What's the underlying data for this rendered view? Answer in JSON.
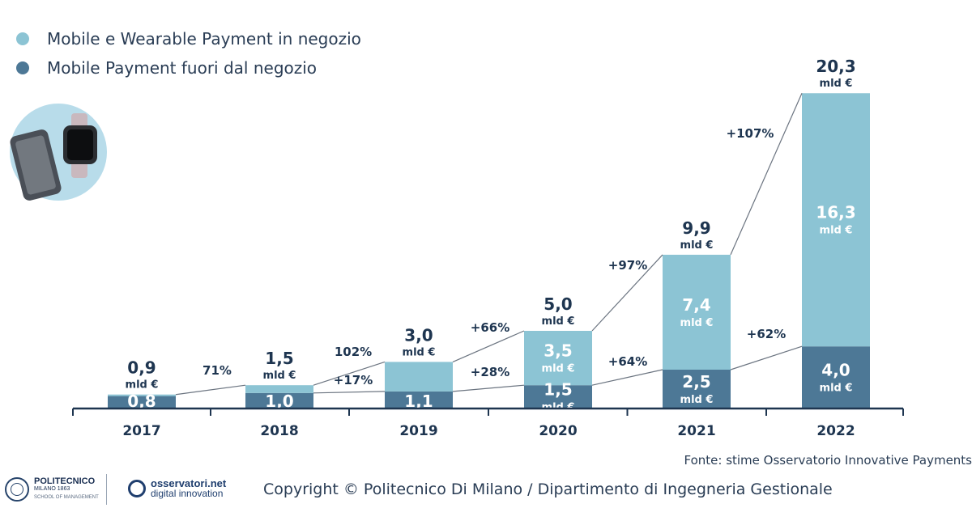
{
  "legend": [
    {
      "label": "Mobile e Wearable Payment in negozio",
      "color": "#8cc4d4"
    },
    {
      "label": "Mobile Payment fuori dal negozio",
      "color": "#4d7896"
    }
  ],
  "icon": "phone-and-smartwatch-icon",
  "chart_data": {
    "type": "bar",
    "stacked": true,
    "categories": [
      "2017",
      "2018",
      "2019",
      "2020",
      "2021",
      "2022"
    ],
    "series": [
      {
        "name": "Mobile Payment fuori dal negozio",
        "values": [
          0.8,
          1.0,
          1.1,
          1.5,
          2.5,
          4.0
        ],
        "labels": [
          "0,8",
          "1,0",
          "1,1",
          "1,5",
          "2,5",
          "4,0"
        ],
        "color": "#4d7896",
        "unit_labels": [
          "",
          "",
          "",
          "mld €",
          "mld €",
          "mld €"
        ]
      },
      {
        "name": "Mobile e Wearable Payment in negozio",
        "values": [
          0.1,
          0.5,
          1.9,
          3.5,
          7.4,
          16.3
        ],
        "labels": [
          "",
          "",
          "",
          "3,5",
          "7,4",
          "16,3"
        ],
        "color": "#8cc4d4",
        "unit_labels": [
          "",
          "",
          "",
          "mld €",
          "mld €",
          "mld €"
        ]
      }
    ],
    "totals": [
      "0,9",
      "1,5",
      "3,0",
      "5,0",
      "9,9",
      "20,3"
    ],
    "total_totals_values": [
      0.9,
      1.5,
      3.0,
      5.0,
      9.9,
      20.3
    ],
    "total_unit": "mld €",
    "growth_top": [
      "71%",
      "102%",
      "+66%",
      "+97%",
      "+107%"
    ],
    "growth_bottom": [
      "",
      "+17%",
      "+28%",
      "+64%",
      "+62%"
    ],
    "ylim": [
      0,
      21
    ]
  },
  "source": "Fonte: stime Osservatorio Innovative Payments",
  "footer": {
    "poli_name": "POLITECNICO",
    "poli_sub": "MILANO 1863",
    "poli_school": "SCHOOL OF MANAGEMENT",
    "oss_name": "osservatori.net",
    "oss_sub": "digital innovation",
    "copyright": "Copyright © Politecnico Di Milano / Dipartimento di Ingegneria Gestionale"
  }
}
